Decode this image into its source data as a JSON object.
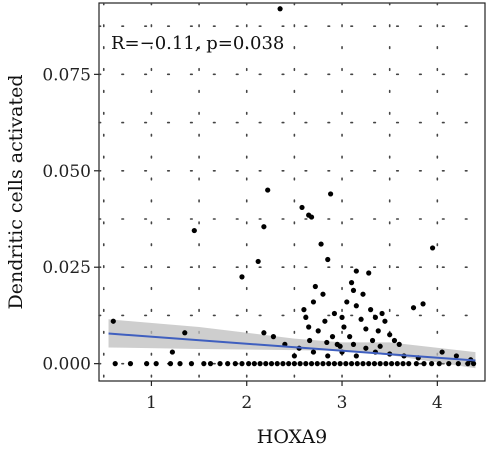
{
  "chart_data": {
    "type": "scatter",
    "xlabel": "HOXA9",
    "ylabel": "Dendritic cells activated",
    "annotation": "R=−0.11, p=0.038",
    "xlim": [
      0.45,
      4.5
    ],
    "ylim": [
      -0.0045,
      0.0935
    ],
    "x_ticks": [
      1,
      2,
      3,
      4
    ],
    "x_tick_labels": [
      "1",
      "2",
      "3",
      "4"
    ],
    "y_ticks": [
      0.0,
      0.025,
      0.05,
      0.075
    ],
    "y_tick_labels": [
      "0.000",
      "0.025",
      "0.050",
      "0.075"
    ],
    "grid": "dotted",
    "colors": {
      "points": "#000000",
      "fit_line": "#3f5fbf",
      "confidence_band": "#bdbdbd"
    },
    "fit_line": {
      "x": [
        0.55,
        4.4
      ],
      "y": [
        0.0078,
        0.0008
      ]
    },
    "confidence_band": {
      "x": [
        0.55,
        1.5,
        2.5,
        3.0,
        3.5,
        4.4
      ],
      "lower": [
        0.0042,
        0.0038,
        0.0035,
        0.0033,
        0.0022,
        -0.0012
      ],
      "upper": [
        0.0115,
        0.0095,
        0.0065,
        0.0055,
        0.0055,
        0.003
      ]
    },
    "points": [
      [
        0.62,
        0.0
      ],
      [
        0.78,
        0.0
      ],
      [
        0.95,
        0.0
      ],
      [
        1.05,
        0.0
      ],
      [
        1.2,
        0.0
      ],
      [
        1.3,
        0.0
      ],
      [
        1.42,
        0.0
      ],
      [
        1.55,
        0.0
      ],
      [
        1.62,
        0.0
      ],
      [
        1.72,
        0.0
      ],
      [
        1.8,
        0.0
      ],
      [
        1.88,
        0.0
      ],
      [
        1.95,
        0.0
      ],
      [
        2.02,
        0.0
      ],
      [
        2.08,
        0.0
      ],
      [
        2.14,
        0.0
      ],
      [
        2.2,
        0.0
      ],
      [
        2.26,
        0.0
      ],
      [
        2.32,
        0.0
      ],
      [
        2.38,
        0.0
      ],
      [
        2.44,
        0.0
      ],
      [
        2.5,
        0.0
      ],
      [
        2.56,
        0.0
      ],
      [
        2.62,
        0.0
      ],
      [
        2.68,
        0.0
      ],
      [
        2.74,
        0.0
      ],
      [
        2.8,
        0.0
      ],
      [
        2.86,
        0.0
      ],
      [
        2.92,
        0.0
      ],
      [
        2.98,
        0.0
      ],
      [
        3.04,
        0.0
      ],
      [
        3.1,
        0.0
      ],
      [
        3.16,
        0.0
      ],
      [
        3.22,
        0.0
      ],
      [
        3.28,
        0.0
      ],
      [
        3.34,
        0.0
      ],
      [
        3.4,
        0.0
      ],
      [
        3.46,
        0.0
      ],
      [
        3.52,
        0.0
      ],
      [
        3.58,
        0.0
      ],
      [
        3.64,
        0.0
      ],
      [
        3.7,
        0.0
      ],
      [
        3.78,
        0.0
      ],
      [
        3.86,
        0.0
      ],
      [
        3.94,
        0.0
      ],
      [
        4.02,
        0.0
      ],
      [
        4.12,
        0.0
      ],
      [
        4.22,
        0.0
      ],
      [
        4.32,
        0.0
      ],
      [
        4.38,
        0.0
      ],
      [
        0.6,
        0.011
      ],
      [
        1.35,
        0.008
      ],
      [
        1.22,
        0.003
      ],
      [
        1.45,
        0.0345
      ],
      [
        1.95,
        0.0225
      ],
      [
        2.12,
        0.0265
      ],
      [
        2.18,
        0.0355
      ],
      [
        2.22,
        0.045
      ],
      [
        2.35,
        0.092
      ],
      [
        2.18,
        0.008
      ],
      [
        2.28,
        0.007
      ],
      [
        2.4,
        0.005
      ],
      [
        2.55,
        0.004
      ],
      [
        2.58,
        0.0405
      ],
      [
        2.65,
        0.0385
      ],
      [
        2.68,
        0.038
      ],
      [
        2.78,
        0.031
      ],
      [
        2.85,
        0.027
      ],
      [
        2.88,
        0.044
      ],
      [
        2.6,
        0.014
      ],
      [
        2.62,
        0.012
      ],
      [
        2.65,
        0.0095
      ],
      [
        2.7,
        0.016
      ],
      [
        2.72,
        0.02
      ],
      [
        2.75,
        0.0085
      ],
      [
        2.8,
        0.018
      ],
      [
        2.82,
        0.011
      ],
      [
        2.9,
        0.007
      ],
      [
        2.92,
        0.013
      ],
      [
        2.95,
        0.005
      ],
      [
        3.0,
        0.012
      ],
      [
        3.02,
        0.0095
      ],
      [
        3.05,
        0.016
      ],
      [
        3.08,
        0.007
      ],
      [
        3.1,
        0.021
      ],
      [
        3.12,
        0.019
      ],
      [
        3.15,
        0.015
      ],
      [
        3.15,
        0.024
      ],
      [
        3.2,
        0.0115
      ],
      [
        3.22,
        0.018
      ],
      [
        3.25,
        0.009
      ],
      [
        3.28,
        0.0235
      ],
      [
        3.3,
        0.014
      ],
      [
        3.32,
        0.006
      ],
      [
        3.35,
        0.012
      ],
      [
        3.38,
        0.0085
      ],
      [
        3.42,
        0.013
      ],
      [
        3.45,
        0.011
      ],
      [
        3.5,
        0.0075
      ],
      [
        3.55,
        0.006
      ],
      [
        3.6,
        0.005
      ],
      [
        3.75,
        0.0145
      ],
      [
        3.85,
        0.0155
      ],
      [
        3.95,
        0.03
      ],
      [
        4.05,
        0.003
      ],
      [
        4.2,
        0.002
      ],
      [
        4.35,
        0.001
      ],
      [
        2.5,
        0.002
      ],
      [
        2.7,
        0.003
      ],
      [
        2.85,
        0.002
      ],
      [
        3.0,
        0.003
      ],
      [
        3.15,
        0.002
      ],
      [
        3.35,
        0.003
      ],
      [
        3.5,
        0.0025
      ],
      [
        3.65,
        0.002
      ],
      [
        3.8,
        0.0015
      ],
      [
        2.98,
        0.0045
      ],
      [
        3.12,
        0.005
      ],
      [
        3.25,
        0.004
      ],
      [
        3.4,
        0.0045
      ],
      [
        2.66,
        0.006
      ],
      [
        2.84,
        0.0055
      ]
    ]
  }
}
